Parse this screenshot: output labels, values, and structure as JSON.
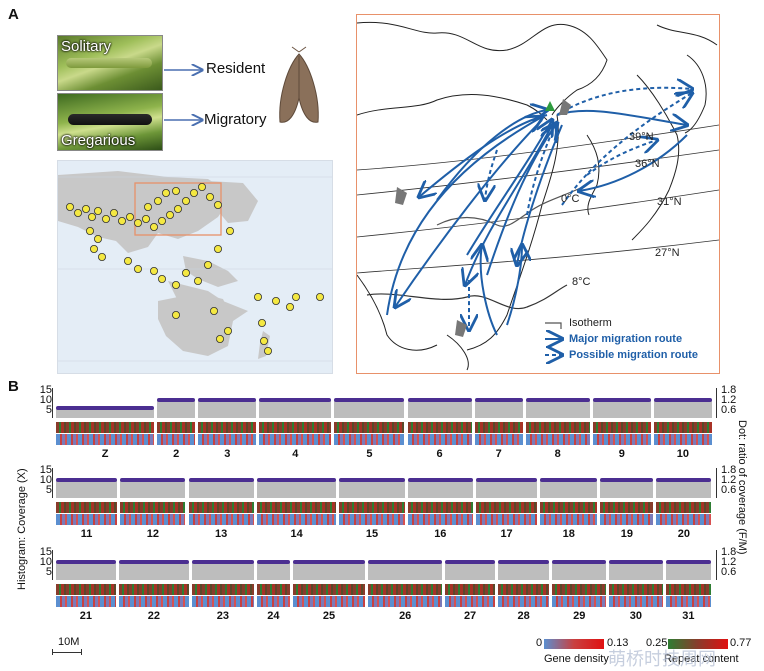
{
  "panel_a": {
    "letter": "A",
    "photo_top_label": "Solitary",
    "photo_bottom_label": "Gregarious",
    "resident_label": "Resident",
    "migratory_label": "Migratory",
    "map_labels": {
      "lat39": "39°N",
      "lat36": "36°N",
      "lat31": "31°N",
      "lat27": "27°N",
      "iso0": "0°C",
      "iso8": "8°C"
    },
    "legend": {
      "isotherm": "Isotherm",
      "major": "Major migration route",
      "possible": "Possible migration route"
    },
    "colors": {
      "route": "#1f5fa8",
      "box": "#e8916a",
      "dot": "#f4e842",
      "marker": "#2e9b3f"
    }
  },
  "panel_b": {
    "letter": "B",
    "row1_chroms": [
      "Z",
      "2",
      "3",
      "4",
      "5",
      "6",
      "7",
      "8",
      "9",
      "10"
    ],
    "row2_chroms": [
      "11",
      "12",
      "13",
      "14",
      "15",
      "16",
      "17",
      "18",
      "19",
      "20"
    ],
    "row3_chroms": [
      "21",
      "22",
      "23",
      "24",
      "25",
      "26",
      "27",
      "28",
      "29",
      "30",
      "31"
    ],
    "left_ticks": [
      "15",
      "10",
      "5"
    ],
    "right_ticks": [
      "1.8",
      "1.2",
      "0.6"
    ],
    "left_axis_label": "Histogram:  Coverage (X)",
    "right_axis_label": "Dot: ratio of coverage (F/M)",
    "scale_label": "10M",
    "gene_density": {
      "min": "0",
      "max": "0.13",
      "label": "Gene density"
    },
    "repeat_content": {
      "min": "0.25",
      "max": "0.77",
      "label": "Repeat content"
    },
    "watermark": "萌桥时技周网",
    "colors": {
      "dot": "#4b2e91",
      "hist": "#bdbdbd"
    }
  }
}
